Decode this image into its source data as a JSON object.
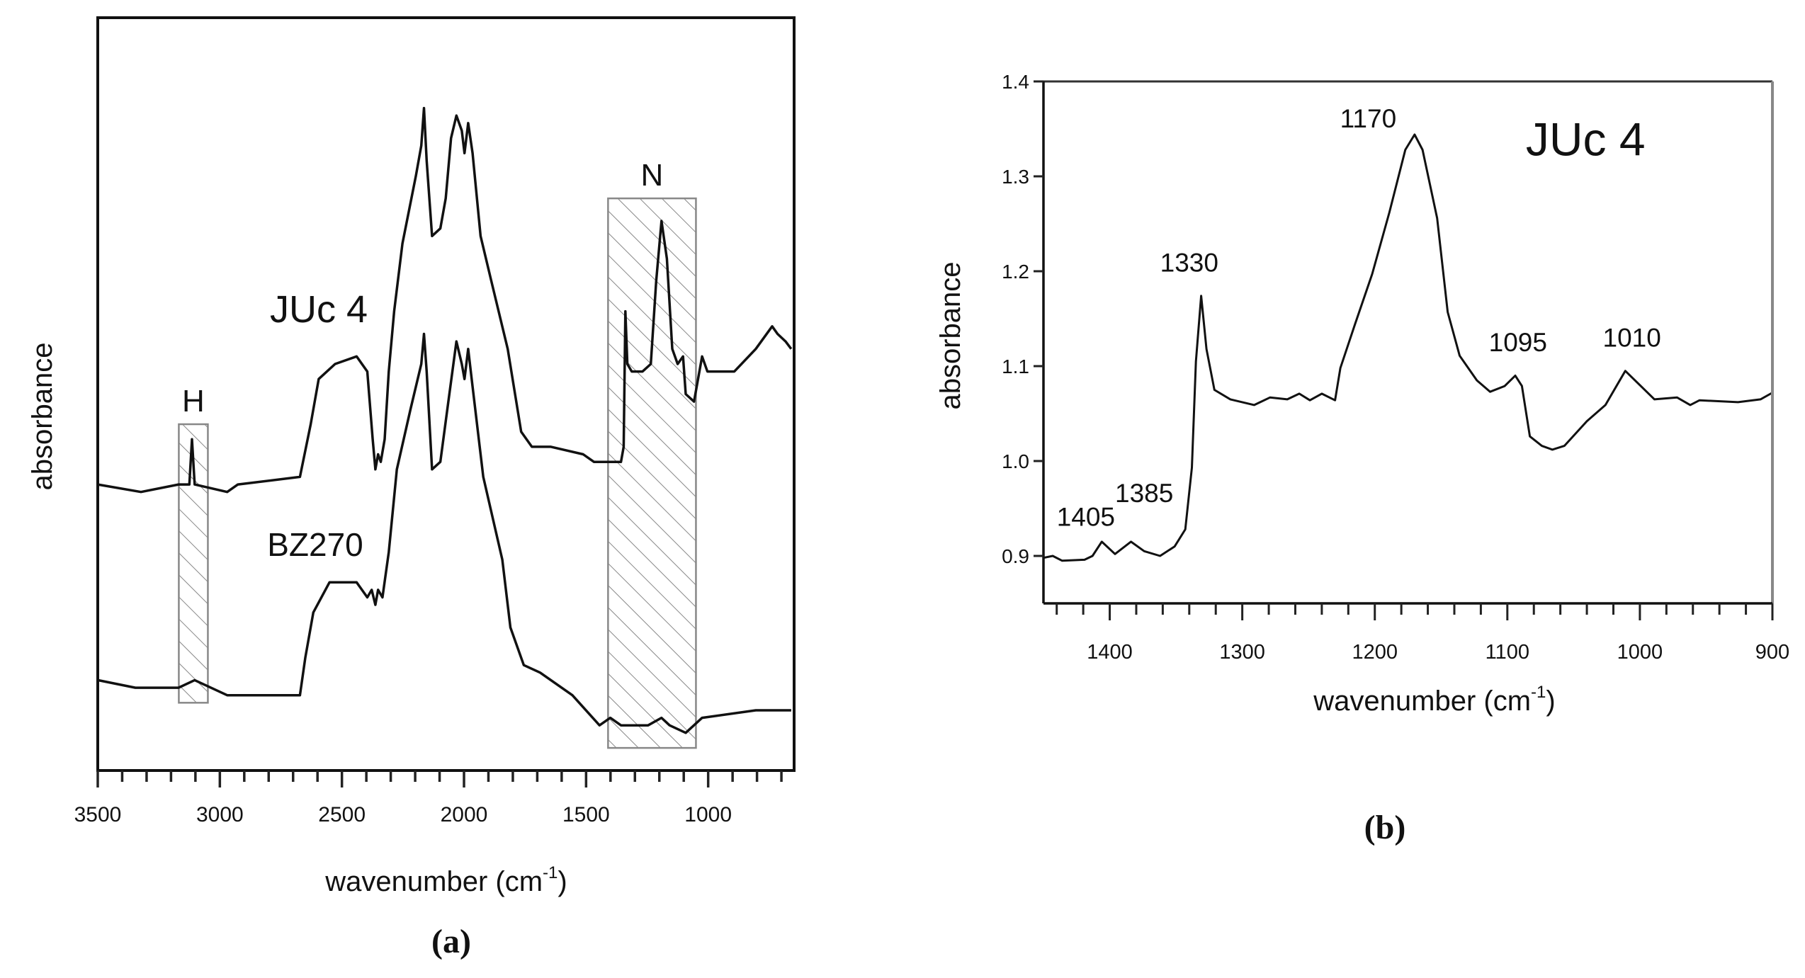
{
  "chart_data": [
    {
      "panel_label": "(a)",
      "type": "line",
      "xlabel": "wavenumber (cm",
      "xlabel_sup": "-1",
      "xlabel_close": ")",
      "ylabel": "absorbance",
      "xlim": [
        3500,
        648
      ],
      "ylim": [
        0,
        1
      ],
      "x_ticks": [
        3500,
        3000,
        2500,
        2000,
        1500,
        1000
      ],
      "x_tick_labels": [
        "3500",
        "3000",
        "2500",
        "2000",
        "1500",
        "1000"
      ],
      "minor_tick_step": 100,
      "grid": false,
      "series": [
        {
          "name": "JUc 4",
          "x": [
            3500,
            3323,
            3169,
            3125,
            3114,
            3103,
            2970,
            2926,
            2672,
            2628,
            2595,
            2528,
            2440,
            2396,
            2374,
            2363,
            2352,
            2341,
            2325,
            2308,
            2286,
            2252,
            2197,
            2175,
            2164,
            2153,
            2131,
            2097,
            2075,
            2053,
            2031,
            2009,
            1998,
            1983,
            1965,
            1932,
            1888,
            1821,
            1766,
            1722,
            1688,
            1644,
            1512,
            1468,
            1434,
            1379,
            1357,
            1346,
            1339,
            1331,
            1313,
            1269,
            1235,
            1213,
            1191,
            1169,
            1147,
            1125,
            1103,
            1092,
            1058,
            1025,
            1003,
            959,
            893,
            805,
            738,
            716,
            683,
            660
          ],
          "y": [
            0.38,
            0.37,
            0.38,
            0.38,
            0.44,
            0.38,
            0.37,
            0.38,
            0.39,
            0.46,
            0.52,
            0.54,
            0.55,
            0.53,
            0.44,
            0.4,
            0.42,
            0.41,
            0.44,
            0.53,
            0.61,
            0.7,
            0.79,
            0.83,
            0.88,
            0.81,
            0.71,
            0.72,
            0.76,
            0.84,
            0.87,
            0.85,
            0.82,
            0.86,
            0.82,
            0.71,
            0.65,
            0.56,
            0.45,
            0.43,
            0.43,
            0.43,
            0.42,
            0.41,
            0.41,
            0.41,
            0.41,
            0.43,
            0.61,
            0.54,
            0.53,
            0.53,
            0.54,
            0.65,
            0.73,
            0.68,
            0.56,
            0.54,
            0.55,
            0.5,
            0.49,
            0.55,
            0.53,
            0.53,
            0.53,
            0.56,
            0.59,
            0.58,
            0.57,
            0.56
          ]
        },
        {
          "name": "BZ270",
          "x": [
            3500,
            3346,
            3169,
            3103,
            2970,
            2672,
            2650,
            2617,
            2551,
            2440,
            2396,
            2378,
            2363,
            2352,
            2334,
            2308,
            2275,
            2219,
            2175,
            2164,
            2153,
            2131,
            2097,
            2064,
            2031,
            2009,
            1998,
            1983,
            1965,
            1921,
            1843,
            1810,
            1755,
            1688,
            1556,
            1445,
            1401,
            1357,
            1246,
            1191,
            1158,
            1092,
            1025,
            805,
            660
          ],
          "y": [
            0.12,
            0.11,
            0.11,
            0.12,
            0.1,
            0.1,
            0.15,
            0.21,
            0.25,
            0.25,
            0.23,
            0.24,
            0.22,
            0.24,
            0.23,
            0.29,
            0.4,
            0.48,
            0.54,
            0.58,
            0.53,
            0.4,
            0.41,
            0.49,
            0.57,
            0.54,
            0.52,
            0.56,
            0.51,
            0.39,
            0.28,
            0.19,
            0.14,
            0.13,
            0.1,
            0.06,
            0.07,
            0.06,
            0.06,
            0.07,
            0.06,
            0.05,
            0.07,
            0.08,
            0.08
          ]
        }
      ],
      "regions": [
        {
          "label": "H",
          "x_range": [
            3168,
            3049
          ],
          "y_range": [
            0.09,
            0.46
          ]
        },
        {
          "label": "N",
          "x_range": [
            1410,
            1050
          ],
          "y_range": [
            0.03,
            0.76
          ]
        }
      ]
    },
    {
      "panel_label": "(b)",
      "type": "line",
      "title": "JUc 4",
      "xlabel": "wavenumber (cm",
      "xlabel_sup": "-1",
      "xlabel_close": ")",
      "ylabel": "absorbance",
      "xlim": [
        1450,
        900
      ],
      "ylim": [
        0.85,
        1.4
      ],
      "x_ticks": [
        1400,
        1300,
        1200,
        1100,
        1000,
        900
      ],
      "x_tick_labels": [
        "1400",
        "1300",
        "1200",
        "1100",
        "1000",
        "900"
      ],
      "y_ticks": [
        0.9,
        1.0,
        1.1,
        1.2,
        1.3,
        1.4
      ],
      "y_tick_labels": [
        "0.9",
        "1.0",
        "1.1",
        "1.2",
        "1.3",
        "1.4"
      ],
      "minor_tick_step": 20,
      "grid": false,
      "series": [
        {
          "name": "JUc 4",
          "x": [
            1450,
            1443,
            1436,
            1419,
            1413,
            1406,
            1396,
            1384,
            1374,
            1362,
            1351,
            1343,
            1338,
            1335,
            1331,
            1327,
            1321,
            1309,
            1291,
            1279,
            1266,
            1257,
            1249,
            1240,
            1230,
            1226,
            1215,
            1202,
            1189,
            1177,
            1170,
            1164,
            1153,
            1145,
            1136,
            1123,
            1113,
            1102,
            1094,
            1089,
            1083,
            1074,
            1066,
            1057,
            1040,
            1026,
            1011,
            1000,
            989,
            972,
            962,
            955,
            926,
            909,
            900
          ],
          "y": [
            0.898,
            0.9,
            0.895,
            0.896,
            0.9,
            0.915,
            0.902,
            0.915,
            0.905,
            0.9,
            0.91,
            0.928,
            0.993,
            1.105,
            1.174,
            1.118,
            1.075,
            1.065,
            1.059,
            1.067,
            1.065,
            1.071,
            1.064,
            1.071,
            1.064,
            1.098,
            1.144,
            1.197,
            1.262,
            1.328,
            1.344,
            1.328,
            1.256,
            1.157,
            1.111,
            1.085,
            1.073,
            1.079,
            1.09,
            1.079,
            1.026,
            1.016,
            1.012,
            1.016,
            1.042,
            1.059,
            1.095,
            1.08,
            1.065,
            1.067,
            1.059,
            1.064,
            1.062,
            1.065,
            1.072
          ]
        }
      ],
      "annotations": [
        "1405",
        "1385",
        "1330",
        "1170",
        "1095",
        "1010"
      ]
    }
  ]
}
